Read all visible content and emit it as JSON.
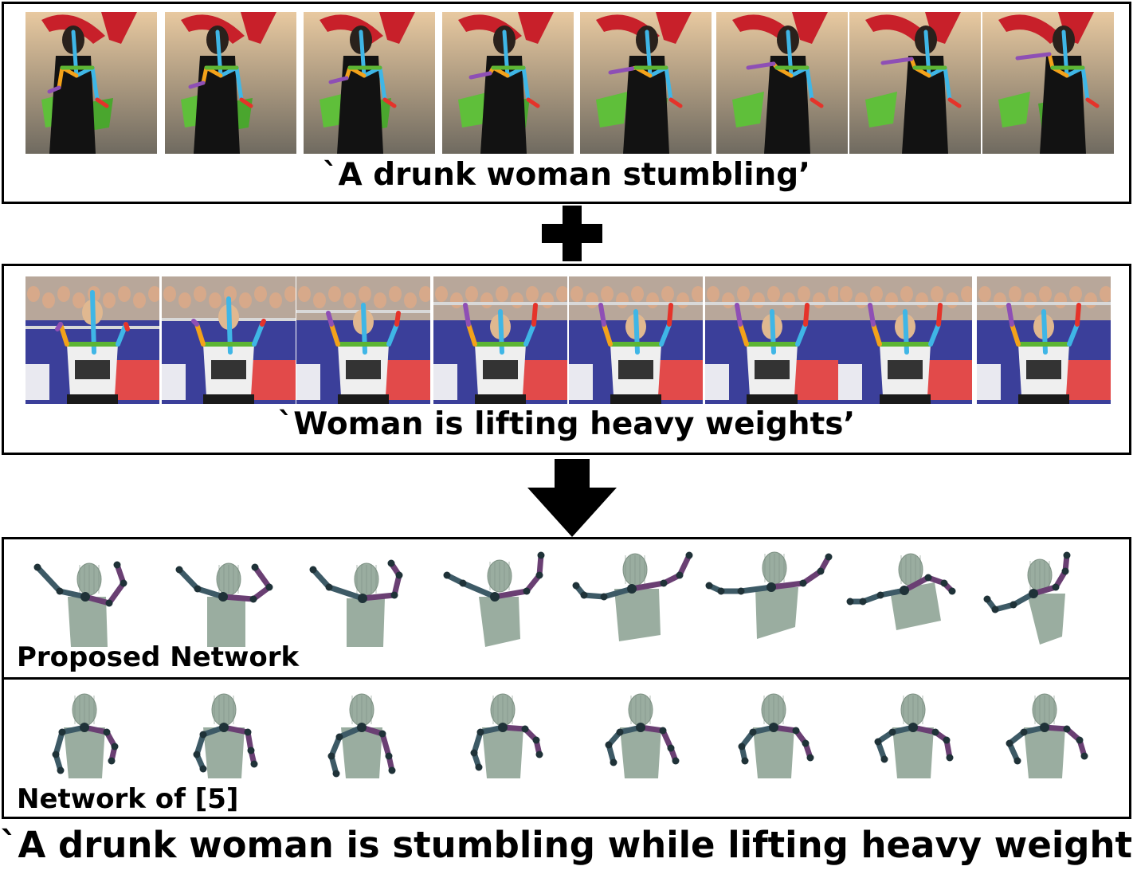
{
  "source_a": {
    "caption": "`A drunk woman stumbling’",
    "frame_count": 8
  },
  "source_b": {
    "caption": "`Woman is lifting heavy weights’",
    "frame_count": 8
  },
  "operator_icon": "plus-icon",
  "result_icon": "arrow-down-icon",
  "proposed": {
    "label": "Proposed Network",
    "frame_count": 8
  },
  "baseline": {
    "label": "Network of [5]",
    "frame_count": 8
  },
  "final_caption": "`A drunk woman is stumbling while lifting heavy weights’",
  "colors": {
    "skin_gray": "#9aada0",
    "limb_teal": "#3d5a66",
    "limb_purple": "#6a3f73",
    "skeleton_blue": "#3fb6e6",
    "skeleton_orange": "#f3a21a",
    "skeleton_red": "#e5332a",
    "skeleton_green": "#5db534",
    "skeleton_purple": "#8e4fb5"
  }
}
